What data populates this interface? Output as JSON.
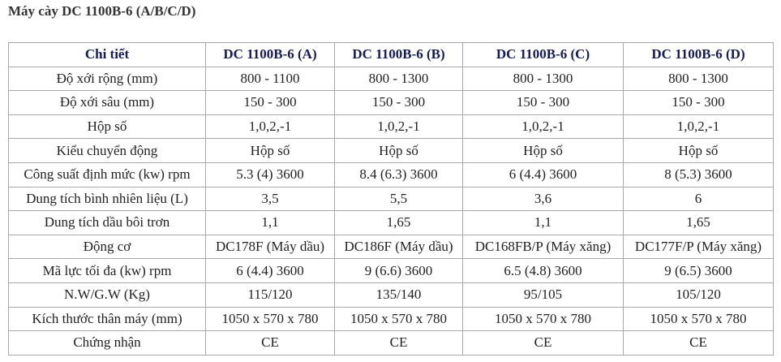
{
  "title": "Máy cày DC 1100B-6 (A/B/C/D)",
  "table": {
    "header": [
      "Chi tiết",
      "DC 1100B-6 (A)",
      "DC 1100B-6 (B)",
      "DC 1100B-6 (C)",
      "DC 1100B-6 (D)"
    ],
    "rows": [
      [
        "Độ xới rộng (mm)",
        "800 - 1100",
        "800 - 1300",
        "800 - 1300",
        "800 - 1300"
      ],
      [
        "Độ xới sâu (mm)",
        "150 - 300",
        "150 - 300",
        "150 - 300",
        "150 - 300"
      ],
      [
        "Hộp số",
        "1,0,2,-1",
        "1,0,2,-1",
        "1,0,2,-1",
        "1,0,2,-1"
      ],
      [
        "Kiểu chuyển động",
        "Hộp số",
        "Hộp số",
        "Hộp số",
        "Hộp số"
      ],
      [
        "Công suất định mức (kw) rpm",
        "5.3 (4) 3600",
        "8.4 (6.3) 3600",
        "6 (4.4) 3600",
        "8 (5.3) 3600"
      ],
      [
        "Dung tích bình nhiên liệu (L)",
        "3,5",
        "5,5",
        "3,6",
        "6"
      ],
      [
        "Dung tích dầu bôi trơn",
        "1,1",
        "1,65",
        "1,1",
        "1,65"
      ],
      [
        "Động cơ",
        "DC178F (Máy dầu)",
        "DC186F (Máy dầu)",
        "DC168FB/P (Máy xăng)",
        "DC177F/P (Máy xăng)"
      ],
      [
        "Mã lực tối đa (kw) rpm",
        "6 (4.4) 3600",
        "9 (6.6) 3600",
        "6.5 (4.8) 3600",
        "9 (6.5) 3600"
      ],
      [
        "N.W/G.W (Kg)",
        "115/120",
        "135/140",
        "95/105",
        "105/120"
      ],
      [
        "Kích thước thân máy (mm)",
        "1050 x 570 x 780",
        "1050 x 570 x 780",
        "1050 x 570 x 780",
        "1050 x 570 x 780"
      ],
      [
        "Chứng nhận",
        "CE",
        "CE",
        "CE",
        "CE"
      ]
    ]
  }
}
